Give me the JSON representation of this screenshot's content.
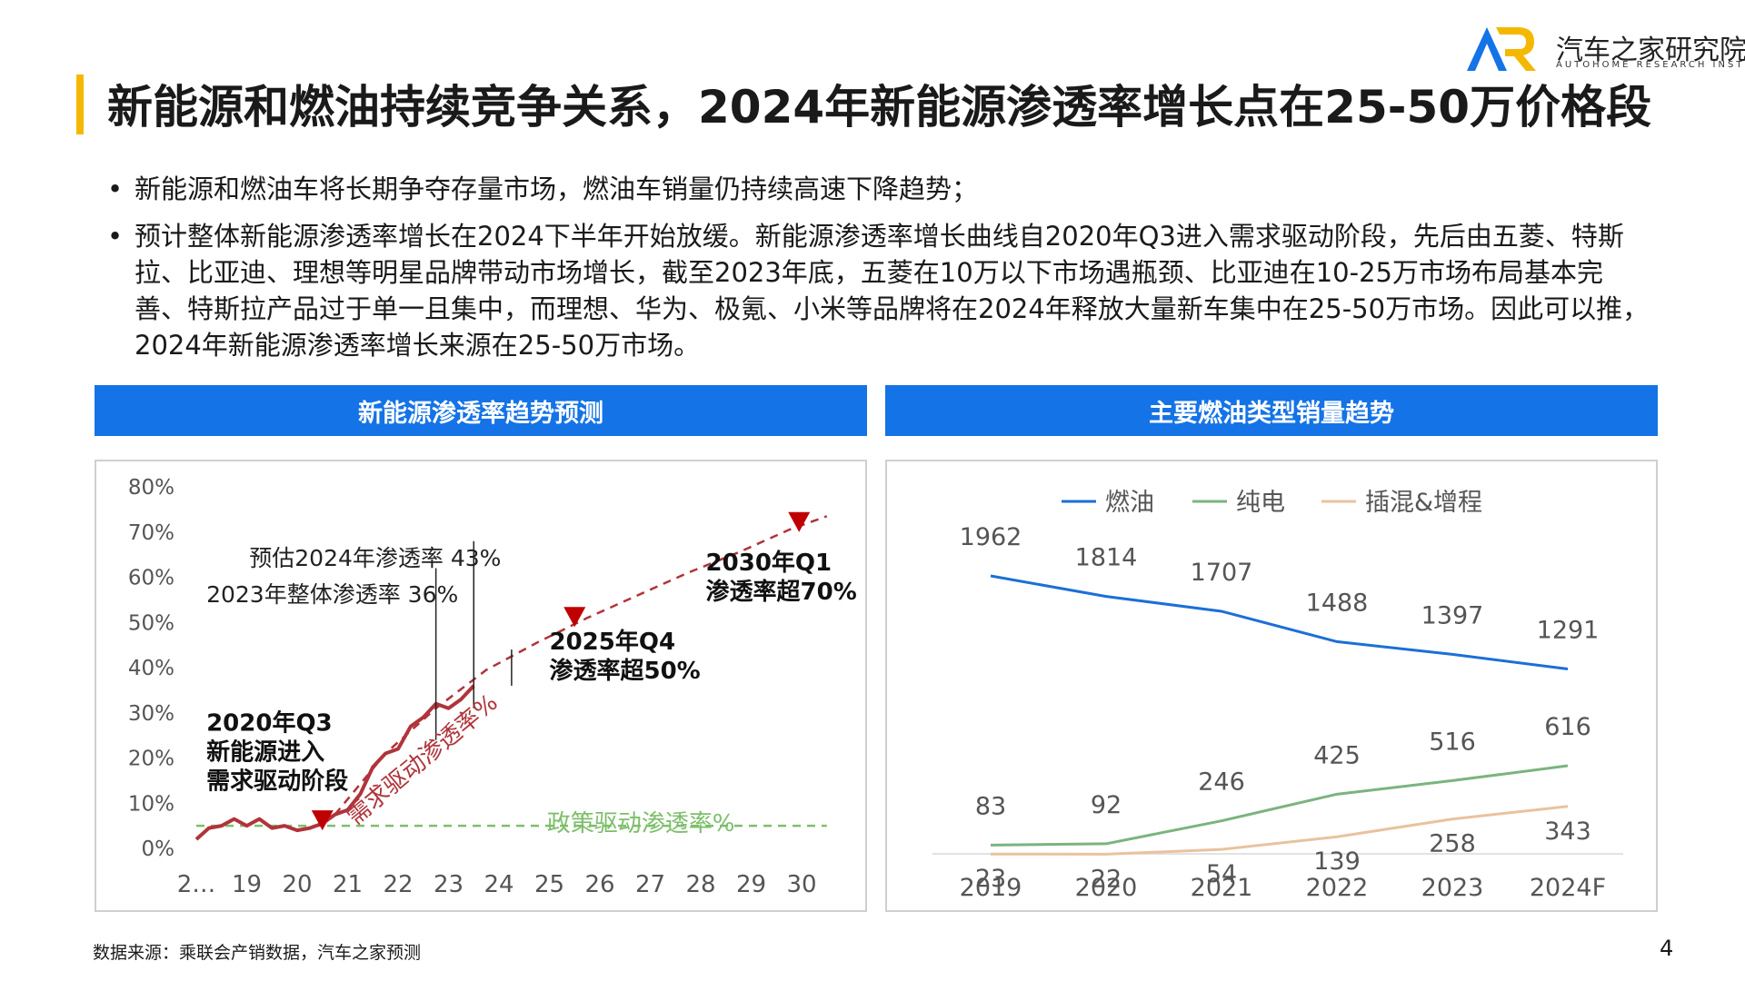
{
  "title": "新能源和燃油持续竞争关系，2024年新能源渗透率增长点在25-50万价格段",
  "logo": {
    "name": "汽车之家研究院",
    "sub": "AUTOHOME RESEARCH INSTITUTE",
    "mark": "AR"
  },
  "bullets": [
    "新能源和燃油车将长期争夺存量市场，燃油车销量仍持续高速下降趋势；",
    "预计整体新能源渗透率增长在2024下半年开始放缓。新能源渗透率增长曲线自2020年Q3进入需求驱动阶段，先后由五菱、特斯拉、比亚迪、理想等明星品牌带动市场增长，截至2023年底，五菱在10万以下市场遇瓶颈、比亚迪在10-25万市场布局基本完善、特斯拉产品过于单一且集中，而理想、华为、极氪、小米等品牌将在2024年释放大量新车集中在25-50万市场。因此可以推，2024年新能源渗透率增长来源在25-50万市场。"
  ],
  "panels": {
    "left_title": "新能源渗透率趋势预测",
    "right_title": "主要燃油类型销量趋势"
  },
  "source": "数据来源：乘联会产销数据，汽车之家预测",
  "page_number": "4",
  "colors": {
    "accent": "#1473e6",
    "title_bar": "#f5b800",
    "dark_red": "#b0343a",
    "marker_red": "#c00000",
    "policy_green": "#7dbf6b",
    "fuel_blue": "#1c6fd6",
    "ev_green": "#7ab47e",
    "phev_tan": "#e8c39e"
  },
  "chart_data": [
    {
      "type": "line",
      "y_ticks": [
        "80%",
        "70%",
        "60%",
        "50%",
        "40%",
        "30%",
        "20%",
        "10%",
        "0%"
      ],
      "ylim": [
        0,
        80
      ],
      "x_ticks": [
        "2…",
        "19",
        "20",
        "21",
        "22",
        "23",
        "24",
        "25",
        "26",
        "27",
        "28",
        "29",
        "30"
      ],
      "series": [
        {
          "x": [
            18.0,
            18.25,
            18.5,
            18.75,
            19.0,
            19.25,
            19.5,
            19.75,
            20.0,
            20.25,
            20.5,
            20.75,
            21.0,
            21.25,
            21.5,
            21.75,
            22.0,
            22.25,
            22.5,
            22.75,
            23.0,
            23.25,
            23.5
          ],
          "values": [
            2,
            4.5,
            5,
            6.5,
            5,
            6.5,
            4.5,
            5,
            4,
            4.5,
            5.5,
            7.5,
            8.5,
            12,
            18,
            21,
            22,
            27,
            29,
            32,
            31,
            33,
            36
          ]
        },
        {
          "x": [
            20.75,
            21.75,
            22.75,
            23.75,
            24.75,
            25.75,
            26.75,
            27.75,
            28.75,
            29.75,
            30.5
          ],
          "values": [
            7.5,
            21,
            31,
            39.5,
            45.5,
            51,
            56,
            61,
            65.5,
            70.5,
            73.5
          ]
        },
        {
          "x": [
            18.0,
            30.5
          ],
          "values": [
            5,
            5
          ]
        }
      ],
      "annotations": [
        {
          "text": "预估2024年渗透率 43%"
        },
        {
          "text": "2023年整体渗透率 36%"
        },
        {
          "lines": [
            "2030年Q1",
            "渗透率超70%"
          ]
        },
        {
          "lines": [
            "2025年Q4",
            "渗透率超50%"
          ]
        },
        {
          "lines": [
            "2020年Q3",
            "新能源进入",
            "需求驱动阶段"
          ]
        },
        {
          "text": "需求驱动渗透率%"
        },
        {
          "text": "政策驱动渗透率%"
        }
      ],
      "markers": [
        {
          "x": 20.5,
          "y": 6
        },
        {
          "x": 25.5,
          "y": 51
        },
        {
          "x": 29.95,
          "y": 72
        }
      ]
    },
    {
      "type": "line",
      "categories": [
        "2019",
        "2020",
        "2021",
        "2022",
        "2023",
        "2024F"
      ],
      "series": [
        {
          "name": "燃油",
          "values": [
            1962,
            1814,
            1707,
            1488,
            1397,
            1291
          ]
        },
        {
          "name": "纯电",
          "values": [
            83,
            92,
            246,
            425,
            516,
            616
          ]
        },
        {
          "name": "插混&增程",
          "values": [
            23,
            22,
            54,
            139,
            258,
            343
          ]
        }
      ],
      "legend": "top"
    }
  ]
}
